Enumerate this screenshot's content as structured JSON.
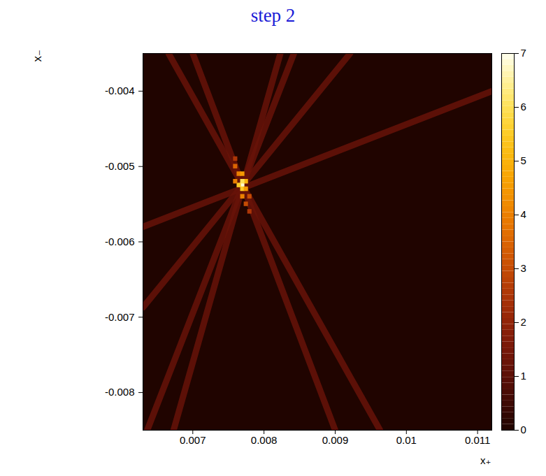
{
  "chart_data": {
    "type": "heatmap",
    "title": "step 2",
    "x_label": "x₊",
    "y_label": "x₋",
    "xlim": [
      0.0063,
      0.0112
    ],
    "ylim": [
      -0.0085,
      -0.0035
    ],
    "xticks": [
      0.007,
      0.008,
      0.009,
      0.01,
      0.011
    ],
    "yticks": [
      -0.004,
      -0.005,
      -0.006,
      -0.007,
      -0.008
    ],
    "colorbar": {
      "range": [
        0,
        7
      ],
      "ticks": [
        0,
        1,
        2,
        3,
        4,
        5,
        6,
        7
      ]
    },
    "bands": [
      {
        "x": [
          0.0063,
          0.0112
        ],
        "y": [
          -0.0058,
          -0.004
        ],
        "value": 1.2
      },
      {
        "x": [
          0.0063,
          0.00921
        ],
        "y": [
          -0.00687,
          -0.0035
        ],
        "value": 1.2
      },
      {
        "x": [
          0.00666,
          0.00963
        ],
        "y": [
          -0.0035,
          -0.0085
        ],
        "value": 1.2
      },
      {
        "x": [
          0.007,
          0.009
        ],
        "y": [
          -0.0035,
          -0.0085
        ],
        "value": 1.2
      },
      {
        "x": [
          0.00823,
          0.00673
        ],
        "y": [
          -0.0035,
          -0.0085
        ],
        "value": 1.2
      },
      {
        "x": [
          0.00842,
          0.00636
        ],
        "y": [
          -0.0035,
          -0.0085
        ],
        "value": 1.2
      }
    ],
    "cells": {
      "x": [
        0.0077,
        0.00765,
        0.00775,
        0.0077,
        0.0077,
        0.0076,
        0.00765,
        0.0077,
        0.0077,
        0.00775,
        0.0078,
        0.0076,
        0.00775,
        0.0076,
        0.0078
      ],
      "y": [
        -0.00525,
        -0.00525,
        -0.0052,
        -0.0052,
        -0.0053,
        -0.005,
        -0.0051,
        -0.0051,
        -0.0054,
        -0.0055,
        -0.0056,
        -0.0049,
        -0.0053,
        -0.0052,
        -0.0054
      ],
      "values": [
        6.8,
        5.5,
        5.0,
        6.0,
        5.5,
        3.5,
        4.0,
        4.5,
        4.0,
        3.0,
        2.5,
        2.5,
        4.5,
        4.0,
        3.0
      ],
      "cell_width": 6e-05,
      "cell_height": 6e-05
    }
  }
}
